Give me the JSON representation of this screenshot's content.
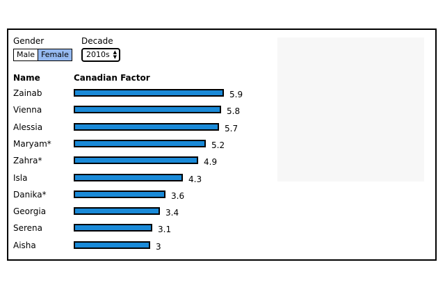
{
  "filters": {
    "gender_label": "Gender",
    "gender_options": [
      "Male",
      "Female"
    ],
    "gender_selected": "Female",
    "decade_label": "Decade",
    "decade_value": "2010s",
    "decade_arrows": "▲▼"
  },
  "table": {
    "name_header": "Name",
    "factor_header": "Canadian Factor"
  },
  "chart_data": {
    "type": "bar",
    "orientation": "horizontal",
    "categories": [
      "Zainab",
      "Vienna",
      "Alessia",
      "Maryam*",
      "Zahra*",
      "Isla",
      "Danika*",
      "Georgia",
      "Serena",
      "Aisha"
    ],
    "values": [
      5.9,
      5.8,
      5.7,
      5.2,
      4.9,
      4.3,
      3.6,
      3.4,
      3.1,
      3
    ],
    "value_labels": [
      "5.9",
      "5.8",
      "5.7",
      "5.2",
      "4.9",
      "4.3",
      "3.6",
      "3.4",
      "3.1",
      "3"
    ],
    "xlim": [
      0,
      5.9
    ],
    "bar_color": "#1a8ad8",
    "grid": false
  },
  "colors": {
    "selected_toggle": "#95b9f0",
    "panel_background": "#f7f7f7"
  }
}
